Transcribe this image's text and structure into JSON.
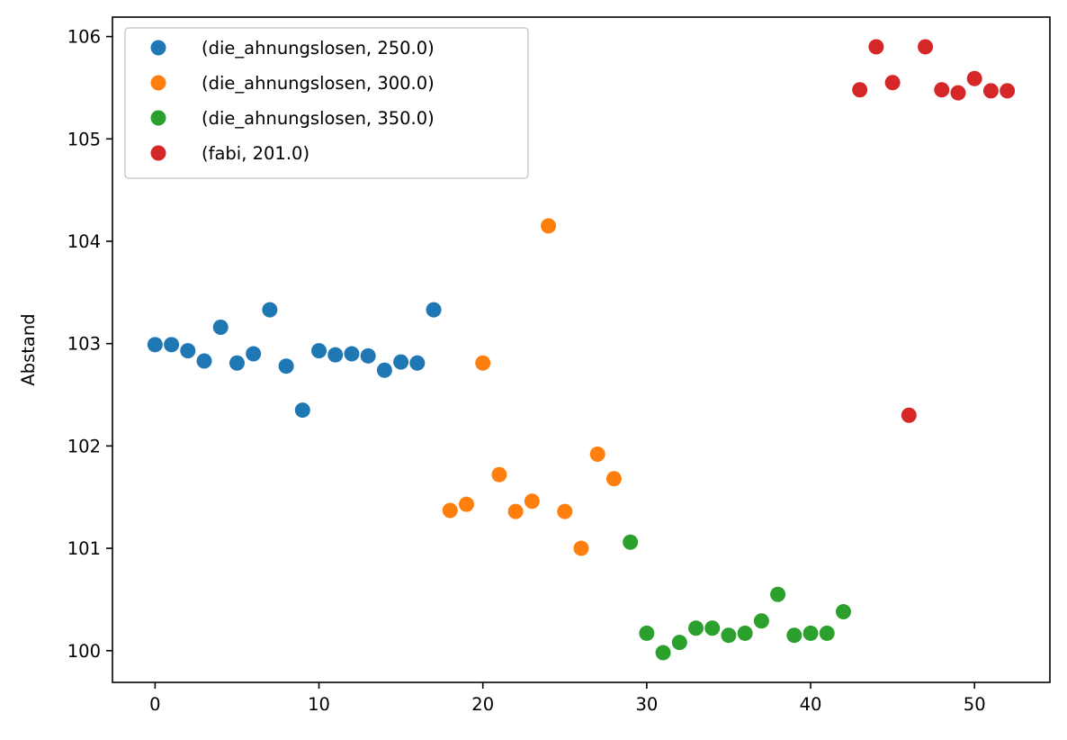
{
  "chart_data": {
    "type": "scatter",
    "title": "",
    "xlabel": "",
    "ylabel": "Abstand",
    "xlim": [
      -2.6,
      54.6
    ],
    "ylim": [
      99.69,
      106.19
    ],
    "xticks": [
      0,
      10,
      20,
      30,
      40,
      50
    ],
    "yticks": [
      100,
      101,
      102,
      103,
      104,
      105,
      106
    ],
    "grid": false,
    "legend_position": "top-left",
    "series": [
      {
        "name": "(die_ahnungslosen, 250.0)",
        "color": "#1f77b4",
        "x": [
          0,
          1,
          2,
          3,
          4,
          5,
          6,
          7,
          8,
          9,
          10,
          11,
          12,
          13,
          14,
          15,
          16,
          17
        ],
        "y": [
          102.99,
          102.99,
          102.93,
          102.83,
          103.16,
          102.81,
          102.9,
          103.33,
          102.78,
          102.35,
          102.93,
          102.89,
          102.9,
          102.88,
          102.74,
          102.82,
          102.81,
          103.33
        ]
      },
      {
        "name": "(die_ahnungslosen, 300.0)",
        "color": "#ff7f0e",
        "x": [
          18,
          19,
          20,
          21,
          22,
          23,
          24,
          25,
          26,
          27,
          28
        ],
        "y": [
          101.37,
          101.43,
          102.81,
          101.72,
          101.36,
          101.46,
          104.15,
          101.36,
          101.0,
          101.92,
          101.68
        ]
      },
      {
        "name": "(die_ahnungslosen, 350.0)",
        "color": "#2ca02c",
        "x": [
          29,
          30,
          31,
          32,
          33,
          34,
          35,
          36,
          37,
          38,
          39,
          40,
          41,
          42
        ],
        "y": [
          101.06,
          100.17,
          99.98,
          100.08,
          100.22,
          100.22,
          100.15,
          100.17,
          100.29,
          100.55,
          100.15,
          100.17,
          100.17,
          100.38
        ]
      },
      {
        "name": "(fabi, 201.0)",
        "color": "#d62728",
        "x": [
          43,
          44,
          45,
          46,
          47,
          48,
          49,
          50,
          51,
          52
        ],
        "y": [
          105.48,
          105.9,
          105.55,
          102.3,
          105.9,
          105.48,
          105.45,
          105.59,
          105.47,
          105.47
        ]
      }
    ]
  }
}
